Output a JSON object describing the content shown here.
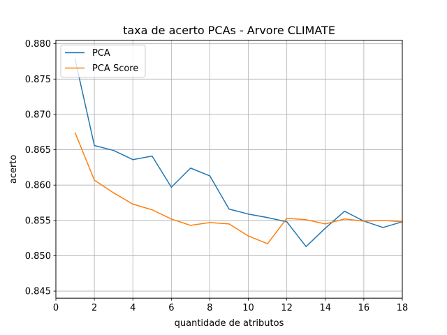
{
  "chart_data": {
    "type": "line",
    "title": "taxa de acerto PCAs - Arvore CLIMATE",
    "xlabel": "quantidade de atributos",
    "ylabel": "acerto",
    "xlim": [
      0,
      18
    ],
    "ylim": [
      0.844,
      0.8805
    ],
    "xticks": [
      0,
      2,
      4,
      6,
      8,
      10,
      12,
      14,
      16,
      18
    ],
    "xtick_labels": [
      "0",
      "2",
      "4",
      "6",
      "8",
      "10",
      "12",
      "14",
      "16",
      "18"
    ],
    "yticks": [
      0.845,
      0.85,
      0.855,
      0.86,
      0.865,
      0.87,
      0.875,
      0.88
    ],
    "ytick_labels": [
      "0.845",
      "0.850",
      "0.855",
      "0.860",
      "0.865",
      "0.870",
      "0.875",
      "0.880"
    ],
    "grid": true,
    "legend_position": "top-left",
    "x": [
      1,
      2,
      3,
      4,
      5,
      6,
      7,
      8,
      9,
      10,
      11,
      12,
      13,
      14,
      15,
      16,
      17,
      18
    ],
    "series": [
      {
        "name": "PCA",
        "color": "#1f77b4",
        "values": [
          0.8778,
          0.8656,
          0.8649,
          0.8636,
          0.8641,
          0.8597,
          0.8624,
          0.8613,
          0.8566,
          0.8559,
          0.8554,
          0.8548,
          0.8513,
          0.8539,
          0.8563,
          0.8549,
          0.854,
          0.8548
        ]
      },
      {
        "name": "PCA Score",
        "color": "#ff7f0e",
        "values": [
          0.8674,
          0.8607,
          0.8589,
          0.8573,
          0.8565,
          0.8552,
          0.8543,
          0.8547,
          0.8545,
          0.8528,
          0.8517,
          0.8553,
          0.8551,
          0.8545,
          0.8552,
          0.8549,
          0.855,
          0.8548
        ]
      }
    ]
  }
}
